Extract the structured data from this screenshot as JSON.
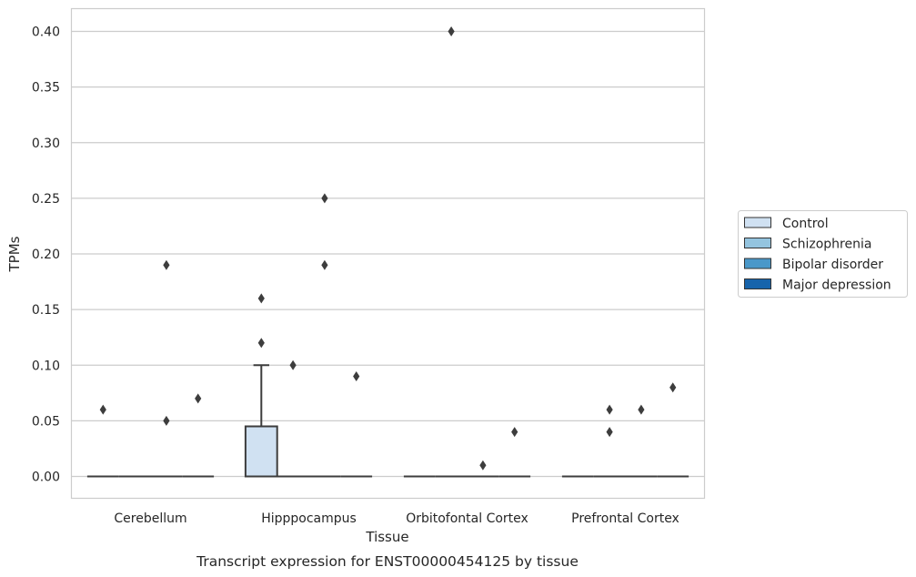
{
  "chart_data": {
    "type": "box",
    "title": "",
    "caption": "Transcript expression for ENST00000454125 by tissue",
    "xlabel": "Tissue",
    "ylabel": "TPMs",
    "ylim": [
      -0.02,
      0.42
    ],
    "yticks": [
      0.0,
      0.05,
      0.1,
      0.15,
      0.2,
      0.25,
      0.3,
      0.35,
      0.4
    ],
    "ytick_labels": [
      "0.00",
      "0.05",
      "0.10",
      "0.15",
      "0.20",
      "0.25",
      "0.30",
      "0.35",
      "0.40"
    ],
    "grid": true,
    "legend_position": "right, outside plot",
    "categories": [
      "Cerebellum",
      "Hipppocampus",
      "Orbitofontal Cortex",
      "Prefrontal Cortex"
    ],
    "series": [
      {
        "name": "Control",
        "color": "#d0e1f2",
        "boxes": [
          {
            "q1": 0,
            "median": 0,
            "q3": 0,
            "whislo": 0,
            "whishi": 0,
            "fliers": [
              0.06
            ]
          },
          {
            "q1": 0,
            "median": 0,
            "q3": 0.045,
            "whislo": 0,
            "whishi": 0.1,
            "fliers": [
              0.16,
              0.12
            ]
          },
          {
            "q1": 0,
            "median": 0,
            "q3": 0,
            "whislo": 0,
            "whishi": 0,
            "fliers": []
          },
          {
            "q1": 0,
            "median": 0,
            "q3": 0,
            "whislo": 0,
            "whishi": 0,
            "fliers": []
          }
        ]
      },
      {
        "name": "Schizophrenia",
        "color": "#94c4df",
        "boxes": [
          {
            "q1": 0,
            "median": 0,
            "q3": 0,
            "whislo": 0,
            "whishi": 0,
            "fliers": []
          },
          {
            "q1": 0,
            "median": 0,
            "q3": 0,
            "whislo": 0,
            "whishi": 0,
            "fliers": [
              0.1
            ]
          },
          {
            "q1": 0,
            "median": 0,
            "q3": 0,
            "whislo": 0,
            "whishi": 0,
            "fliers": [
              0.4
            ]
          },
          {
            "q1": 0,
            "median": 0,
            "q3": 0,
            "whislo": 0,
            "whishi": 0,
            "fliers": [
              0.06,
              0.04
            ]
          }
        ]
      },
      {
        "name": "Bipolar disorder",
        "color": "#4a98c9",
        "boxes": [
          {
            "q1": 0,
            "median": 0,
            "q3": 0,
            "whislo": 0,
            "whishi": 0,
            "fliers": [
              0.19,
              0.05
            ]
          },
          {
            "q1": 0,
            "median": 0,
            "q3": 0,
            "whislo": 0,
            "whishi": 0,
            "fliers": [
              0.25,
              0.19
            ]
          },
          {
            "q1": 0,
            "median": 0,
            "q3": 0,
            "whislo": 0,
            "whishi": 0,
            "fliers": [
              0.01
            ]
          },
          {
            "q1": 0,
            "median": 0,
            "q3": 0,
            "whislo": 0,
            "whishi": 0,
            "fliers": [
              0.06
            ]
          }
        ]
      },
      {
        "name": "Major depression",
        "color": "#1764ab",
        "boxes": [
          {
            "q1": 0,
            "median": 0,
            "q3": 0,
            "whislo": 0,
            "whishi": 0,
            "fliers": [
              0.07
            ]
          },
          {
            "q1": 0,
            "median": 0,
            "q3": 0,
            "whislo": 0,
            "whishi": 0,
            "fliers": [
              0.09
            ]
          },
          {
            "q1": 0,
            "median": 0,
            "q3": 0,
            "whislo": 0,
            "whishi": 0,
            "fliers": [
              0.04
            ]
          },
          {
            "q1": 0,
            "median": 0,
            "q3": 0,
            "whislo": 0,
            "whishi": 0,
            "fliers": [
              0.08
            ]
          }
        ]
      }
    ]
  }
}
